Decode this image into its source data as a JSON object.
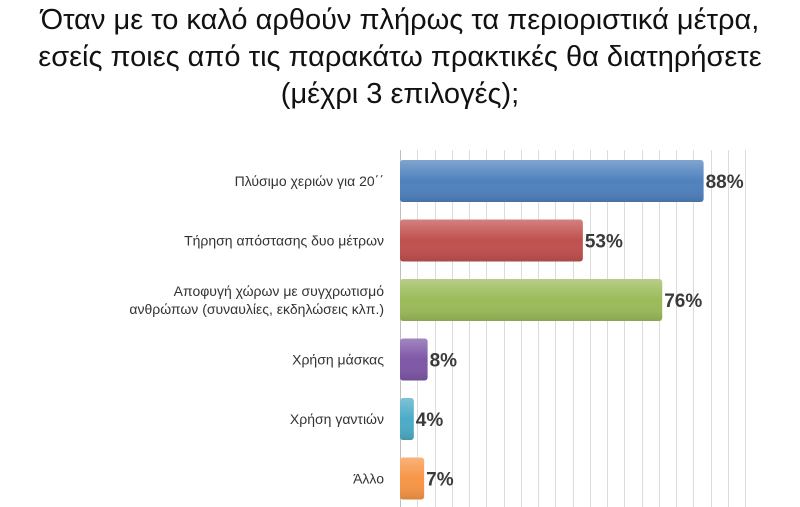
{
  "title_lines": [
    "Όταν με το καλό αρθούν πλήρως τα περιοριστικά μέτρα,",
    "εσείς ποιες από τις παρακάτω πρακτικές θα διατηρήσετε",
    "(μέχρι 3 επιλογές);"
  ],
  "chart_data": {
    "type": "bar",
    "orientation": "horizontal",
    "title": "Όταν με το καλό αρθούν πλήρως τα περιοριστικά μέτρα, εσείς ποιες από τις παρακάτω πρακτικές θα διατηρήσετε (μέχρι 3 επιλογές);",
    "categories": [
      [
        "Πλύσιμο χεριών για 20΄΄"
      ],
      [
        "Τήρηση απόστασης δυο μέτρων"
      ],
      [
        "Αποφυγή χώρων με συγχρωτισμό",
        "ανθρώπων (συναυλίες, εκδηλώσεις κλπ.)"
      ],
      [
        "Χρήση μάσκας"
      ],
      [
        "Χρήση γαντιών"
      ],
      [
        "Άλλο"
      ]
    ],
    "values": [
      88,
      53,
      76,
      8,
      4,
      7
    ],
    "value_labels": [
      "88%",
      "53%",
      "76%",
      "8%",
      "4%",
      "7%"
    ],
    "colors": [
      "#4f81bd",
      "#c0504d",
      "#9bbb59",
      "#7e57a7",
      "#4bacc6",
      "#f79646"
    ],
    "xlim": [
      0,
      100
    ],
    "grid": true,
    "legend": "none"
  }
}
